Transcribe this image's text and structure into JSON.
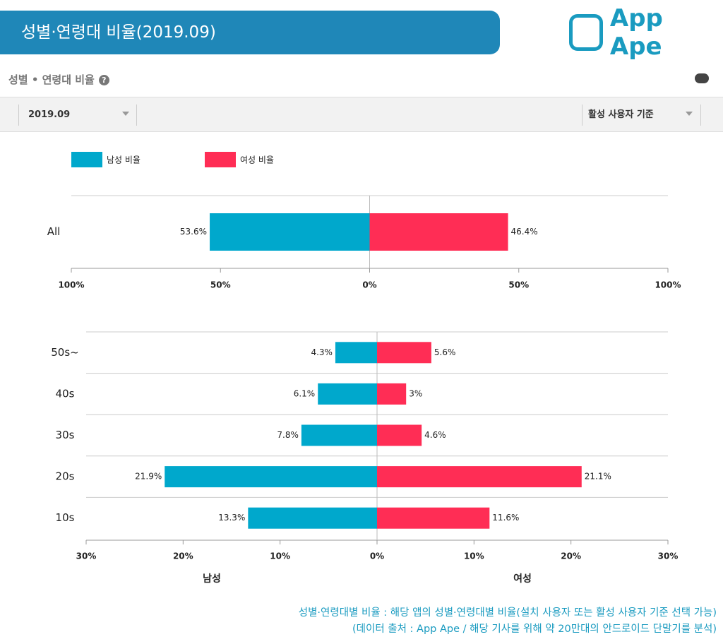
{
  "header": {
    "title": "성별·연령대 비율(2019.09)",
    "logo": "App Ape"
  },
  "panel": {
    "title": "성별 • 연령대 비율",
    "period": "2019.09",
    "basis": "활성 사용자 기준"
  },
  "chart_data": [
    {
      "type": "butterfly-bar",
      "categories": [
        "All"
      ],
      "series": [
        {
          "name": "남성 비율",
          "color": "#00a8cc",
          "side": "left",
          "values": [
            53.6
          ],
          "value_labels": [
            "53.6%"
          ]
        },
        {
          "name": "여성 비율",
          "color": "#ff2d55",
          "side": "right",
          "values": [
            46.4
          ],
          "value_labels": [
            "46.4%"
          ]
        }
      ],
      "xlim": [
        -100,
        100
      ],
      "xticks": [
        {
          "value": -100,
          "label": "100%"
        },
        {
          "value": -50,
          "label": "50%"
        },
        {
          "value": 0,
          "label": "0%"
        },
        {
          "value": 50,
          "label": "50%"
        },
        {
          "value": 100,
          "label": "100%"
        }
      ],
      "legend": "top-left"
    },
    {
      "type": "butterfly-bar",
      "categories": [
        "50s~",
        "40s",
        "30s",
        "20s",
        "10s"
      ],
      "series": [
        {
          "color": "#00a8cc",
          "side": "left",
          "values": [
            4.3,
            6.1,
            7.8,
            21.9,
            13.3
          ],
          "value_labels": [
            "4.3%",
            "6.1%",
            "7.8%",
            "21.9%",
            "13.3%"
          ]
        },
        {
          "color": "#ff2d55",
          "side": "right",
          "values": [
            5.6,
            3,
            4.6,
            21.1,
            11.6
          ],
          "value_labels": [
            "5.6%",
            "3%",
            "4.6%",
            "21.1%",
            "11.6%"
          ]
        }
      ],
      "xlim": [
        -30,
        30
      ],
      "xticks": [
        {
          "value": -30,
          "label": "30%"
        },
        {
          "value": -20,
          "label": "20%"
        },
        {
          "value": -10,
          "label": "10%"
        },
        {
          "value": 0,
          "label": "0%"
        },
        {
          "value": 10,
          "label": "10%"
        },
        {
          "value": 20,
          "label": "20%"
        },
        {
          "value": 30,
          "label": "30%"
        }
      ],
      "xlabel_left": "남성",
      "xlabel_right": "여성"
    }
  ],
  "notes": [
    "성별·연령대별 비율 : 해당 앱의 성별·연령대별 비율(설치 사용자 또는 활성 사용자 기준 선택 가능)",
    "(데이터 출처 : App Ape / 해당 기사를 위해 약 20만대의 안드로이드 단말기를 분석)"
  ]
}
